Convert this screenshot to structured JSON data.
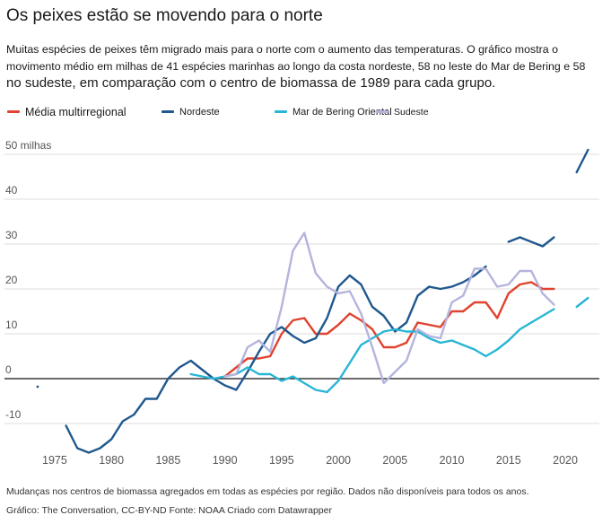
{
  "header": {
    "title": "Os peixes estão se movendo para o norte",
    "subtitle_line1": "Muitas espécies de peixes têm migrado mais para o norte com o aumento das temperaturas. O gráfico mostra o movimento médio em milhas de 41 espécies marinhas ao longo da costa nordeste, 58 no leste do Mar de Bering e 58",
    "subtitle_line2": "no sudeste, em comparação com o centro de biomassa de 1989 para cada grupo."
  },
  "footer": {
    "note": "Mudanças nos centros de biomassa agregados em todas as espécies por região. Dados não disponíveis para todos os anos.",
    "credit": "Gráfico: The Conversation, CC-BY-ND Fonte: NOAA Criado com Datawrapper"
  },
  "chart_data": {
    "type": "line",
    "title": "Os peixes estão se movendo para o norte",
    "xlabel": "",
    "ylabel": "",
    "xlim": [
      1970.5,
      2023
    ],
    "ylim": [
      -17,
      52
    ],
    "x_ticks": [
      1975,
      1980,
      1985,
      1990,
      1995,
      2000,
      2005,
      2010,
      2015,
      2020
    ],
    "x_tick_labels": [
      "1975",
      "1980",
      "1985",
      "1990",
      "1995",
      "2000",
      "2005",
      "2010",
      "2015",
      "2020"
    ],
    "y_ticks": [
      -10,
      0,
      10,
      20,
      30,
      40,
      50
    ],
    "y_tick_labels": [
      "-10",
      "0",
      "10",
      "20",
      "30",
      "40",
      "50 milhas"
    ],
    "grid": true,
    "legend_position": "top",
    "series": [
      {
        "name": "Média multirregional",
        "color": "#e0432f",
        "points": [
          [
            1990,
            0.5
          ],
          [
            1991,
            2.5
          ],
          [
            1992,
            4.5
          ],
          [
            1993,
            4.5
          ],
          [
            1994,
            5
          ],
          [
            1995,
            10
          ],
          [
            1996,
            13
          ],
          [
            1997,
            13.5
          ],
          [
            1998,
            10
          ],
          [
            1999,
            10
          ],
          [
            2000,
            12
          ],
          [
            2001,
            14.5
          ],
          [
            2002,
            13
          ],
          [
            2003,
            11
          ],
          [
            2004,
            7
          ],
          [
            2005,
            7
          ],
          [
            2006,
            8
          ],
          [
            2007,
            12.5
          ],
          [
            2008,
            12
          ],
          [
            2009,
            11.5
          ],
          [
            2010,
            15
          ],
          [
            2011,
            15
          ],
          [
            2012,
            17
          ],
          [
            2013,
            17
          ],
          [
            2014,
            13.5
          ],
          [
            2015,
            19
          ],
          [
            2016,
            21
          ],
          [
            2017,
            21.5
          ],
          [
            2018,
            20
          ],
          [
            2019,
            20
          ]
        ]
      },
      {
        "name": "Nordeste",
        "color": "#20588e",
        "points": [
          [
            1973.5,
            -1.8
          ],
          [
            null,
            null
          ],
          [
            1976,
            -10.5
          ],
          [
            1977,
            -15.5
          ],
          [
            1978,
            -16.5
          ],
          [
            1979,
            -15.5
          ],
          [
            1980,
            -13.5
          ],
          [
            1981,
            -9.5
          ],
          [
            1982,
            -8
          ],
          [
            1983,
            -4.5
          ],
          [
            1984,
            -4.5
          ],
          [
            1985,
            0
          ],
          [
            1986,
            2.5
          ],
          [
            1987,
            4
          ],
          [
            1988,
            2
          ],
          [
            1989,
            0
          ],
          [
            1990,
            -1.5
          ],
          [
            1991,
            -2.5
          ],
          [
            1992,
            1.5
          ],
          [
            1993,
            6
          ],
          [
            1994,
            10
          ],
          [
            1995,
            11.5
          ],
          [
            1996,
            9.5
          ],
          [
            1997,
            8
          ],
          [
            1998,
            9
          ],
          [
            1999,
            13.5
          ],
          [
            2000,
            20.5
          ],
          [
            2001,
            23
          ],
          [
            2002,
            21
          ],
          [
            2003,
            16
          ],
          [
            2004,
            14
          ],
          [
            2005,
            10.5
          ],
          [
            2006,
            12.5
          ],
          [
            2007,
            18.5
          ],
          [
            2008,
            20.5
          ],
          [
            2009,
            20
          ],
          [
            2010,
            20.5
          ],
          [
            2011,
            21.5
          ],
          [
            2012,
            23
          ],
          [
            2013,
            25
          ],
          [
            null,
            null
          ],
          [
            2015,
            30.5
          ],
          [
            2016,
            31.5
          ],
          [
            2017,
            30.5
          ],
          [
            2018,
            29.5
          ],
          [
            2019,
            31.5
          ],
          [
            null,
            null
          ],
          [
            2021,
            46
          ],
          [
            2022,
            51
          ]
        ]
      },
      {
        "name": "Mar de Bering Oriental",
        "color": "#29b5d6",
        "points": [
          [
            1987,
            1
          ],
          [
            1988,
            0.5
          ],
          [
            1989,
            0
          ],
          [
            1990,
            0.5
          ],
          [
            1991,
            1
          ],
          [
            1992,
            2.5
          ],
          [
            1993,
            1
          ],
          [
            1994,
            1
          ],
          [
            1995,
            -0.5
          ],
          [
            1996,
            0.5
          ],
          [
            1997,
            -1
          ],
          [
            1998,
            -2.5
          ],
          [
            1999,
            -3
          ],
          [
            2000,
            -0.5
          ],
          [
            2001,
            3.5
          ],
          [
            2002,
            7.5
          ],
          [
            2003,
            9
          ],
          [
            2004,
            10.5
          ],
          [
            2005,
            11
          ],
          [
            2006,
            10.5
          ],
          [
            2007,
            10.5
          ],
          [
            2008,
            9
          ],
          [
            2009,
            8
          ],
          [
            2010,
            8.5
          ],
          [
            2011,
            7.5
          ],
          [
            2012,
            6.5
          ],
          [
            2013,
            5
          ],
          [
            2014,
            6.5
          ],
          [
            2015,
            8.5
          ],
          [
            2016,
            11
          ],
          [
            2017,
            12.5
          ],
          [
            2018,
            14
          ],
          [
            2019,
            15.5
          ],
          [
            null,
            null
          ],
          [
            2021,
            16
          ],
          [
            2022,
            18
          ]
        ]
      },
      {
        "name": "Sudeste",
        "color": "#b4b4de",
        "points": [
          [
            1990,
            0.5
          ],
          [
            1991,
            1
          ],
          [
            1992,
            7
          ],
          [
            1993,
            8.5
          ],
          [
            1994,
            6
          ],
          [
            1995,
            16
          ],
          [
            1996,
            28.5
          ],
          [
            1997,
            32.5
          ],
          [
            1998,
            23.5
          ],
          [
            1999,
            20.5
          ],
          [
            2000,
            19
          ],
          [
            2001,
            19.5
          ],
          [
            2002,
            14.5
          ],
          [
            2003,
            7
          ],
          [
            2004,
            -1
          ],
          [
            2005,
            1.5
          ],
          [
            2006,
            4
          ],
          [
            2007,
            11
          ],
          [
            2008,
            9.5
          ],
          [
            2009,
            9
          ],
          [
            2010,
            17
          ],
          [
            2011,
            18.5
          ],
          [
            2012,
            24.5
          ],
          [
            2013,
            24.5
          ],
          [
            2014,
            20.5
          ],
          [
            2015,
            21
          ],
          [
            2016,
            24
          ],
          [
            2017,
            24
          ],
          [
            2018,
            19
          ],
          [
            2019,
            16.5
          ]
        ]
      }
    ]
  }
}
